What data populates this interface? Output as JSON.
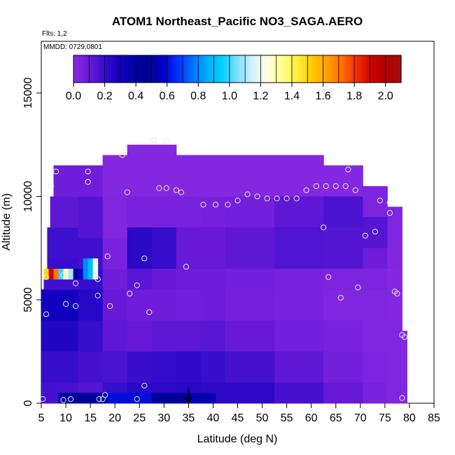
{
  "chart_data": {
    "type": "heatmap",
    "title": "ATOM1 Northeast_Pacific NO3_SAGA.AERO",
    "flights_label": "Flts: 1,2",
    "dates_label": "MMDD: 0729,0801",
    "xlabel": "Latitude (deg N)",
    "ylabel": "Altitude (m)",
    "xlim": [
      5,
      85
    ],
    "ylim": [
      0,
      17500
    ],
    "x_ticks": [
      "5",
      "10",
      "15",
      "20",
      "25",
      "30",
      "35",
      "40",
      "45",
      "50",
      "55",
      "60",
      "65",
      "70",
      "75",
      "80",
      "85"
    ],
    "y_ticks": [
      "0",
      "5000",
      "10000",
      "15000"
    ],
    "colorbar": {
      "range": [
        0,
        2.1
      ],
      "tick_labels": [
        "0.0",
        "0.2",
        "0.4",
        "0.6",
        "0.8",
        "1.0",
        "1.2",
        "1.4",
        "1.6",
        "1.8",
        "2.0"
      ],
      "colors": [
        "#8a2be2",
        "#6a1ad8",
        "#3a0fcc",
        "#1400c0",
        "#0000a8",
        "#000090",
        "#0000c8",
        "#0030ff",
        "#0070ff",
        "#00b0ff",
        "#00d0ff",
        "#80e0ff",
        "#d0f0ff",
        "#ffffe0",
        "#ffff90",
        "#ffee40",
        "#ffcc00",
        "#ffa000",
        "#ff7000",
        "#f03000",
        "#d00000",
        "#b00000",
        "#a01010"
      ]
    },
    "arrow_latitude": 35,
    "cells": [
      [
        5,
        12.5,
        5.5,
        4.0,
        0.3
      ],
      [
        5,
        12.5,
        4.0,
        2.5,
        0.25
      ],
      [
        5,
        12.5,
        2.5,
        1.0,
        0.2
      ],
      [
        5,
        12.5,
        1.0,
        0.0,
        0.17
      ],
      [
        6.2,
        12.5,
        7.0,
        6.5,
        0.2
      ],
      [
        6.2,
        12.5,
        8.5,
        7.0,
        0.18
      ],
      [
        6.8,
        12.5,
        10.0,
        8.5,
        0.12
      ],
      [
        7.5,
        12.5,
        11.5,
        10.0,
        0.08
      ],
      [
        5.5,
        12.5,
        6.5,
        5.5,
        0.18
      ],
      [
        12.5,
        17.5,
        11.5,
        10.0,
        0.08
      ],
      [
        12.5,
        17.5,
        10.0,
        8.0,
        0.14
      ],
      [
        12.5,
        17.5,
        8.0,
        6.5,
        0.18
      ],
      [
        12.5,
        17.5,
        6.5,
        5.5,
        0.2
      ],
      [
        12.5,
        17.5,
        5.5,
        4.0,
        0.24
      ],
      [
        12.5,
        17.5,
        4.0,
        2.5,
        0.2
      ],
      [
        12.5,
        17.5,
        2.5,
        1.0,
        0.17
      ],
      [
        12.5,
        17.5,
        1.0,
        0.0,
        0.14
      ],
      [
        17.5,
        22.5,
        12.0,
        10.0,
        0.02
      ],
      [
        17.5,
        22.5,
        10.0,
        8.0,
        0.03
      ],
      [
        17.5,
        22.5,
        8.0,
        6.5,
        0.05
      ],
      [
        17.5,
        22.5,
        6.5,
        5.5,
        0.08
      ],
      [
        17.5,
        22.5,
        5.5,
        4.0,
        0.1
      ],
      [
        17.5,
        22.5,
        4.0,
        2.5,
        0.12
      ],
      [
        17.5,
        22.5,
        2.5,
        1.0,
        0.16
      ],
      [
        17.5,
        22.5,
        1.0,
        0.0,
        0.2
      ],
      [
        22.5,
        27.5,
        12.5,
        10.0,
        0.02
      ],
      [
        22.5,
        27.5,
        10.0,
        8.5,
        0.05
      ],
      [
        22.5,
        27.5,
        8.5,
        6.5,
        0.23
      ],
      [
        22.5,
        27.5,
        6.5,
        5.5,
        0.13
      ],
      [
        22.5,
        27.5,
        5.5,
        4.0,
        0.08
      ],
      [
        22.5,
        27.5,
        4.0,
        2.5,
        0.1
      ],
      [
        22.5,
        27.5,
        2.5,
        1.0,
        0.19
      ],
      [
        22.5,
        27.5,
        1.0,
        0.0,
        0.24
      ],
      [
        27.5,
        32.5,
        12.5,
        10.0,
        0.02
      ],
      [
        27.5,
        32.5,
        10.0,
        8.5,
        0.05
      ],
      [
        27.5,
        32.5,
        8.5,
        6.5,
        0.2
      ],
      [
        27.5,
        32.5,
        6.5,
        5.5,
        0.1
      ],
      [
        27.5,
        32.5,
        5.5,
        4.0,
        0.08
      ],
      [
        27.5,
        32.5,
        4.0,
        2.5,
        0.12
      ],
      [
        27.5,
        32.5,
        2.5,
        1.0,
        0.21
      ],
      [
        27.5,
        32.5,
        1.0,
        0.0,
        0.22
      ],
      [
        32.5,
        37.5,
        12.0,
        10.0,
        0.02
      ],
      [
        32.5,
        37.5,
        10.0,
        8.5,
        0.05
      ],
      [
        32.5,
        37.5,
        8.5,
        6.5,
        0.1
      ],
      [
        32.5,
        37.5,
        6.5,
        5.5,
        0.08
      ],
      [
        32.5,
        37.5,
        5.5,
        4.0,
        0.07
      ],
      [
        32.5,
        37.5,
        4.0,
        2.5,
        0.12
      ],
      [
        32.5,
        37.5,
        2.5,
        1.0,
        0.22
      ],
      [
        32.5,
        37.5,
        1.0,
        0.0,
        0.24
      ],
      [
        37.5,
        42.5,
        12.0,
        10.0,
        0.02
      ],
      [
        37.5,
        42.5,
        10.0,
        8.5,
        0.06
      ],
      [
        37.5,
        42.5,
        8.5,
        6.5,
        0.1
      ],
      [
        37.5,
        42.5,
        6.5,
        5.5,
        0.08
      ],
      [
        37.5,
        42.5,
        5.5,
        4.0,
        0.08
      ],
      [
        37.5,
        42.5,
        4.0,
        2.5,
        0.13
      ],
      [
        37.5,
        42.5,
        2.5,
        1.0,
        0.2
      ],
      [
        37.5,
        42.5,
        1.0,
        0.0,
        0.22
      ],
      [
        42.5,
        52.5,
        12.0,
        10.0,
        0.02
      ],
      [
        42.5,
        52.5,
        10.0,
        8.5,
        0.07
      ],
      [
        42.5,
        52.5,
        8.5,
        6.5,
        0.12
      ],
      [
        42.5,
        52.5,
        6.5,
        5.5,
        0.07
      ],
      [
        42.5,
        52.5,
        5.5,
        4.0,
        0.06
      ],
      [
        42.5,
        52.5,
        4.0,
        2.5,
        0.1
      ],
      [
        42.5,
        52.5,
        2.5,
        1.0,
        0.17
      ],
      [
        42.5,
        52.5,
        1.0,
        0.0,
        0.22
      ],
      [
        52.5,
        62.5,
        12.0,
        10.0,
        0.02
      ],
      [
        52.5,
        62.5,
        10.0,
        8.5,
        0.12
      ],
      [
        52.5,
        62.5,
        8.5,
        6.5,
        0.15
      ],
      [
        52.5,
        62.5,
        6.5,
        5.5,
        0.05
      ],
      [
        52.5,
        62.5,
        5.5,
        4.0,
        0.05
      ],
      [
        52.5,
        62.5,
        4.0,
        2.5,
        0.07
      ],
      [
        52.5,
        62.5,
        2.5,
        1.0,
        0.12
      ],
      [
        52.5,
        62.5,
        1.0,
        0.0,
        0.17
      ],
      [
        62.5,
        70.5,
        11.5,
        10.0,
        0.02
      ],
      [
        62.5,
        70.5,
        10.0,
        8.5,
        0.16
      ],
      [
        62.5,
        70.5,
        8.5,
        6.5,
        0.14
      ],
      [
        62.5,
        70.5,
        6.5,
        5.5,
        0.04
      ],
      [
        62.5,
        70.5,
        5.5,
        4.0,
        0.03
      ],
      [
        62.5,
        70.5,
        4.0,
        2.5,
        0.05
      ],
      [
        62.5,
        70.5,
        2.5,
        1.0,
        0.07
      ],
      [
        62.5,
        70.5,
        1.0,
        0.0,
        0.1
      ],
      [
        70.5,
        75.5,
        10.5,
        9.0,
        0.04
      ],
      [
        70.5,
        75.5,
        9.0,
        7.5,
        0.14
      ],
      [
        70.5,
        75.5,
        7.5,
        6.5,
        0.08
      ],
      [
        70.5,
        75.5,
        6.5,
        5.5,
        0.04
      ],
      [
        70.5,
        75.5,
        5.5,
        4.0,
        0.03
      ],
      [
        70.5,
        75.5,
        4.0,
        2.5,
        0.03
      ],
      [
        70.5,
        75.5,
        2.5,
        1.0,
        0.04
      ],
      [
        70.5,
        75.5,
        1.0,
        0.0,
        0.05
      ],
      [
        75.5,
        78.5,
        9.5,
        6.5,
        0.03
      ],
      [
        75.5,
        78.5,
        6.5,
        4.0,
        0.02
      ],
      [
        75.5,
        78.5,
        4.0,
        0.0,
        0.03
      ],
      [
        78.5,
        79.5,
        3.5,
        0.0,
        0.02
      ]
    ],
    "hot_cells": [
      [
        5.5,
        6.5,
        6.5,
        6.0,
        1.5
      ],
      [
        6.5,
        7.5,
        6.5,
        6.0,
        1.9
      ],
      [
        7.5,
        8.5,
        6.5,
        6.0,
        1.7
      ],
      [
        8.5,
        9.5,
        6.5,
        6.0,
        1.0
      ],
      [
        9.5,
        10.5,
        6.5,
        6.0,
        1.3
      ],
      [
        10.5,
        11.5,
        6.5,
        6.0,
        1.1
      ],
      [
        11.5,
        12.5,
        6.5,
        6.0,
        0.4
      ],
      [
        12.5,
        13.5,
        6.5,
        6.0,
        0.3
      ],
      [
        13.5,
        14.5,
        7.0,
        6.0,
        0.8
      ],
      [
        14.5,
        15.5,
        7.0,
        6.0,
        0.9
      ],
      [
        15.5,
        16.5,
        7.0,
        6.0,
        1.2
      ],
      [
        8.5,
        18.5,
        0.5,
        0.0,
        0.5
      ],
      [
        18.5,
        27.5,
        0.5,
        0.0,
        0.6
      ],
      [
        27.5,
        34.5,
        0.5,
        0.0,
        0.5
      ],
      [
        34.5,
        40.5,
        0.5,
        0.0,
        0.35
      ]
    ],
    "flight_points": [
      [
        5.3,
        200
      ],
      [
        9.5,
        150
      ],
      [
        11,
        200
      ],
      [
        16.8,
        200
      ],
      [
        17.5,
        200
      ],
      [
        18,
        400
      ],
      [
        24.5,
        200
      ],
      [
        26,
        850
      ],
      [
        6,
        4300
      ],
      [
        10,
        4800
      ],
      [
        12,
        4700
      ],
      [
        16.5,
        5200
      ],
      [
        19,
        4700
      ],
      [
        23,
        5300
      ],
      [
        24.5,
        5700
      ],
      [
        27,
        4400
      ],
      [
        6,
        6100
      ],
      [
        9.5,
        6200
      ],
      [
        12,
        5800
      ],
      [
        16.5,
        6000
      ],
      [
        18.5,
        7100
      ],
      [
        26,
        7000
      ],
      [
        34.5,
        6600
      ],
      [
        7,
        10500
      ],
      [
        8,
        11200
      ],
      [
        14.5,
        11200
      ],
      [
        14.5,
        10700
      ],
      [
        21.5,
        12000
      ],
      [
        22.5,
        10200
      ],
      [
        28,
        12700
      ],
      [
        30.5,
        12700
      ],
      [
        29,
        10400
      ],
      [
        30.5,
        10400
      ],
      [
        32.5,
        10300
      ],
      [
        33.5,
        10200
      ],
      [
        38,
        9600
      ],
      [
        40.5,
        9600
      ],
      [
        43,
        9600
      ],
      [
        45,
        9800
      ],
      [
        47,
        10100
      ],
      [
        49,
        10000
      ],
      [
        51,
        9900
      ],
      [
        53,
        9900
      ],
      [
        55,
        9900
      ],
      [
        57,
        9900
      ],
      [
        59,
        10300
      ],
      [
        61,
        10500
      ],
      [
        63,
        10500
      ],
      [
        65,
        10500
      ],
      [
        67,
        10500
      ],
      [
        69,
        10300
      ],
      [
        67.5,
        11300
      ],
      [
        62.5,
        8500
      ],
      [
        71,
        8100
      ],
      [
        73,
        8300
      ],
      [
        74,
        9800
      ],
      [
        76,
        9700
      ],
      [
        76,
        9200
      ],
      [
        63.5,
        6100
      ],
      [
        66,
        5100
      ],
      [
        69.5,
        5600
      ],
      [
        77,
        5400
      ],
      [
        77.5,
        5300
      ],
      [
        78.5,
        3300
      ],
      [
        79,
        3200
      ],
      [
        78.5,
        250
      ]
    ]
  }
}
